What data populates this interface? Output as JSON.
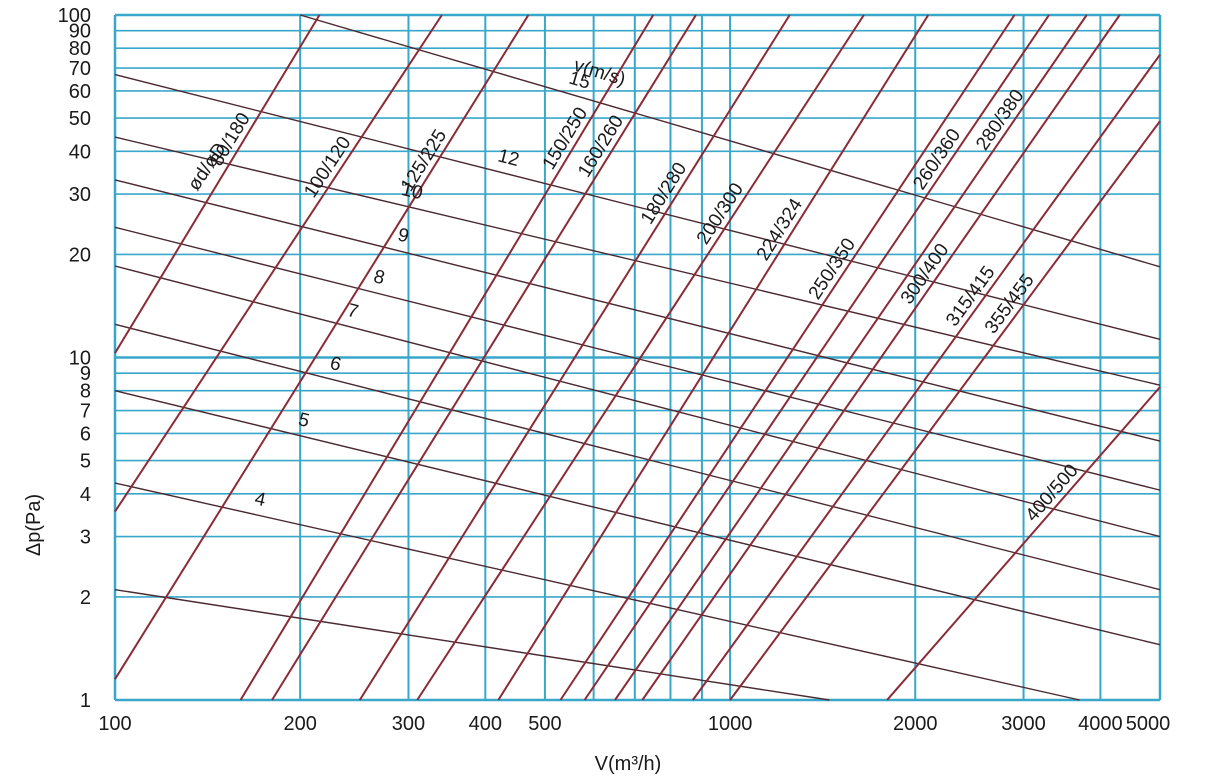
{
  "chart_data": {
    "type": "line",
    "x_scale": "log",
    "y_scale": "log",
    "xlim": [
      100,
      5000
    ],
    "ylim": [
      1,
      100
    ],
    "grid": true,
    "xlabel": "V(m³/h)",
    "ylabel": "Δp(Pa)",
    "x_ticks": [
      100,
      200,
      300,
      400,
      500,
      1000,
      2000,
      3000,
      4000,
      5000
    ],
    "x_tick_labels": [
      "100",
      "200",
      "300",
      "400",
      "500",
      "1000",
      "2000",
      "3000",
      "4000",
      "5000"
    ],
    "x_minor_grid": [
      600,
      700,
      800,
      900
    ],
    "y_ticks": [
      1,
      2,
      3,
      4,
      5,
      6,
      7,
      8,
      9,
      10,
      20,
      30,
      40,
      50,
      60,
      70,
      80,
      90,
      100
    ],
    "y_tick_labels": [
      "1",
      "2",
      "3",
      "4",
      "5",
      "6",
      "7",
      "8",
      "9",
      "10",
      "20",
      "30",
      "40",
      "50",
      "60",
      "70",
      "80",
      "90",
      "100"
    ],
    "colors": {
      "grid": "#39a7c9",
      "duct_lines": "#8b2b35",
      "velocity_lines": "#4a2a30",
      "text": "#1a1a1a"
    },
    "duct_series_header": "ød/øD",
    "velocity_series_header": "v(m/s)",
    "duct_series": [
      {
        "name": "80/180",
        "points": [
          [
            100,
            10.3
          ],
          [
            215,
            100
          ]
        ]
      },
      {
        "name": "100/120",
        "points": [
          [
            100,
            3.55
          ],
          [
            340,
            100
          ]
        ]
      },
      {
        "name": "125/225",
        "points": [
          [
            100,
            1.15
          ],
          [
            470,
            100
          ]
        ]
      },
      {
        "name": "150/250",
        "points": [
          [
            160,
            1
          ],
          [
            750,
            100
          ]
        ]
      },
      {
        "name": "160/260",
        "points": [
          [
            180,
            1
          ],
          [
            880,
            100
          ]
        ]
      },
      {
        "name": "180/280",
        "points": [
          [
            250,
            1
          ],
          [
            1250,
            100
          ]
        ]
      },
      {
        "name": "200/300",
        "points": [
          [
            310,
            1
          ],
          [
            1650,
            100
          ]
        ]
      },
      {
        "name": "224/324",
        "points": [
          [
            420,
            1
          ],
          [
            2100,
            100
          ]
        ]
      },
      {
        "name": "250/350",
        "points": [
          [
            530,
            1
          ],
          [
            2900,
            100
          ]
        ]
      },
      {
        "name": "260/360",
        "points": [
          [
            580,
            1
          ],
          [
            3300,
            100
          ]
        ]
      },
      {
        "name": "280/380",
        "points": [
          [
            650,
            1
          ],
          [
            3800,
            100
          ]
        ]
      },
      {
        "name": "300/400",
        "points": [
          [
            720,
            1
          ],
          [
            4300,
            100
          ]
        ]
      },
      {
        "name": "315/415",
        "points": [
          [
            870,
            1
          ],
          [
            5000,
            76.6
          ]
        ]
      },
      {
        "name": "355/455",
        "points": [
          [
            1000,
            1
          ],
          [
            5000,
            49
          ]
        ]
      },
      {
        "name": "400/500",
        "points": [
          [
            1800,
            1
          ],
          [
            5000,
            8.2
          ]
        ]
      }
    ],
    "velocity_series": [
      {
        "name": "15",
        "points": [
          [
            200,
            100
          ],
          [
            5000,
            18.4
          ]
        ]
      },
      {
        "name": "12",
        "points": [
          [
            100,
            67
          ],
          [
            5000,
            11.3
          ]
        ]
      },
      {
        "name": "10",
        "points": [
          [
            100,
            44
          ],
          [
            5000,
            8.3
          ]
        ]
      },
      {
        "name": "9",
        "points": [
          [
            100,
            33
          ],
          [
            5000,
            5.7
          ]
        ]
      },
      {
        "name": "8",
        "points": [
          [
            100,
            24
          ],
          [
            5000,
            4.1
          ]
        ]
      },
      {
        "name": "7",
        "points": [
          [
            100,
            18.5
          ],
          [
            5000,
            3.0
          ]
        ]
      },
      {
        "name": "6",
        "points": [
          [
            100,
            12.5
          ],
          [
            5000,
            2.1
          ]
        ]
      },
      {
        "name": "5",
        "points": [
          [
            100,
            8.0
          ],
          [
            5000,
            1.45
          ]
        ]
      },
      {
        "name": "4",
        "points": [
          [
            100,
            4.3
          ],
          [
            3700,
            1.0
          ]
        ]
      },
      {
        "name": "",
        "points": [
          [
            100,
            2.1
          ],
          [
            1450,
            1.0
          ]
        ]
      }
    ]
  }
}
